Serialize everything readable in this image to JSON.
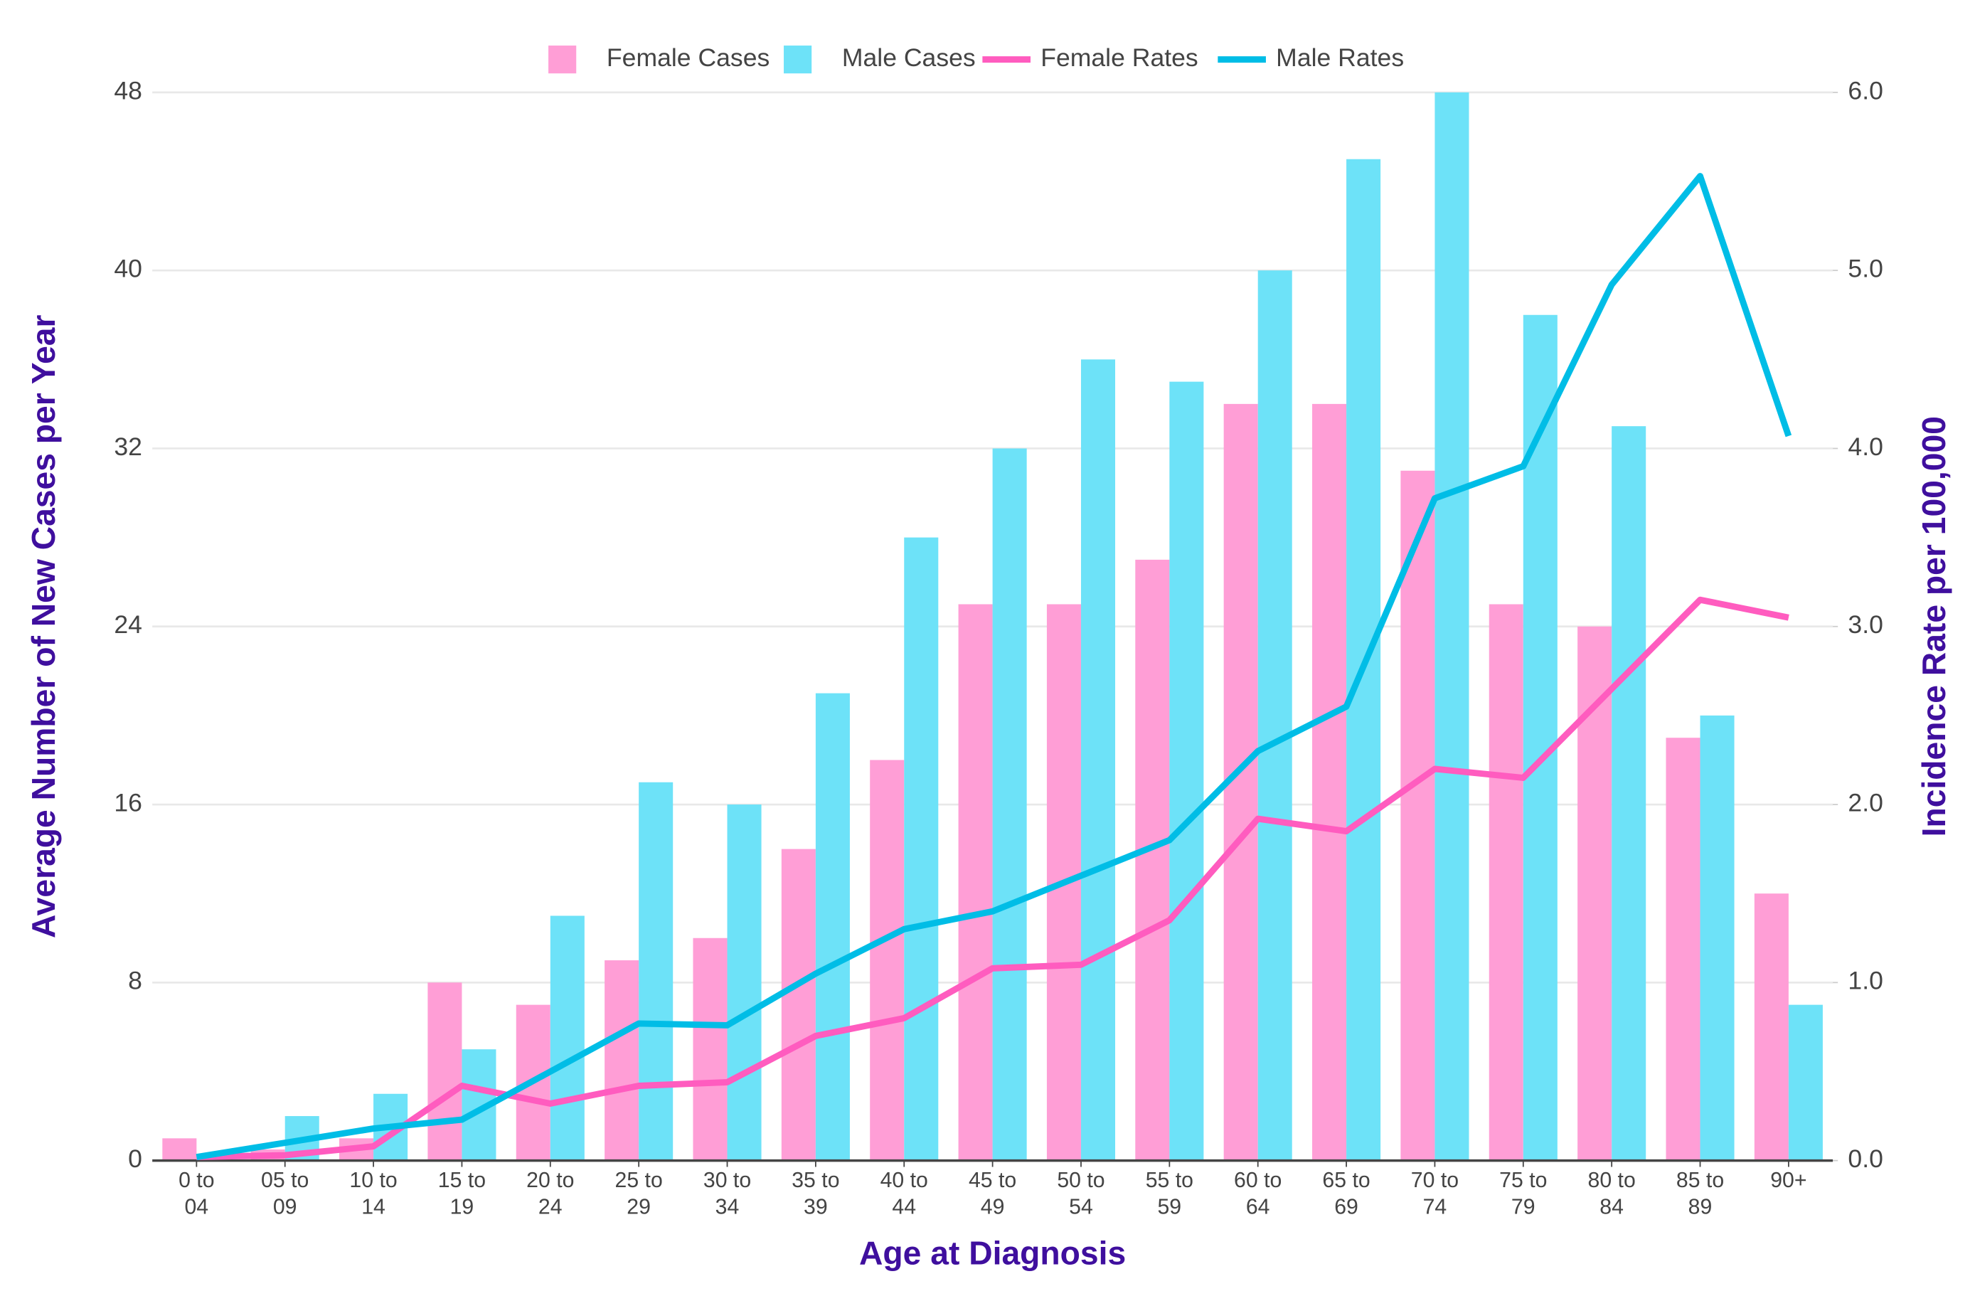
{
  "chart_data": {
    "type": "bar",
    "x_label": "Age at Diagnosis",
    "y_label": "Average Number of New Cases per Year",
    "y2_label": "Incidence Rate per 100,000",
    "categories": [
      "0 to 04",
      "05 to 09",
      "10 to 14",
      "15 to 19",
      "20 to 24",
      "25 to 29",
      "30 to 34",
      "35 to 39",
      "40 to 44",
      "45 to 49",
      "50 to 54",
      "55 to 59",
      "60 to 64",
      "65 to 69",
      "70 to 74",
      "75 to 79",
      "80 to 84",
      "85 to 89",
      "90+"
    ],
    "series": [
      {
        "name": "Female Cases",
        "type": "bar",
        "color": "#ff9ed6",
        "values": [
          1,
          0.5,
          1,
          8,
          7,
          9,
          10,
          14,
          18,
          25,
          25,
          27,
          34,
          34,
          31,
          25,
          24,
          19,
          12
        ]
      },
      {
        "name": "Male Cases",
        "type": "bar",
        "color": "#6de2f8",
        "values": [
          0,
          2,
          3,
          5,
          11,
          17,
          16,
          21,
          28,
          32,
          36,
          35,
          40,
          45,
          48,
          38,
          33,
          20,
          7
        ]
      },
      {
        "name": "Female Rates",
        "type": "line",
        "axis": "y2",
        "color": "#ff5cbf",
        "values": [
          0.02,
          0.03,
          0.08,
          0.42,
          0.32,
          0.42,
          0.44,
          0.7,
          0.8,
          1.08,
          1.1,
          1.35,
          1.92,
          1.85,
          2.2,
          2.15,
          2.65,
          3.15,
          3.05
        ]
      },
      {
        "name": "Male Rates",
        "type": "line",
        "axis": "y2",
        "color": "#00bde6",
        "values": [
          0.02,
          0.1,
          0.18,
          0.23,
          0.5,
          0.77,
          0.76,
          1.05,
          1.3,
          1.4,
          1.6,
          1.8,
          2.3,
          2.55,
          3.72,
          3.9,
          4.92,
          5.53,
          4.07
        ]
      }
    ],
    "ylim": [
      0,
      48
    ],
    "yticks": [
      0,
      8,
      16,
      24,
      32,
      40,
      48
    ],
    "y2lim": [
      0,
      6
    ],
    "y2ticks": [
      {
        "value": 0,
        "label": "0.0"
      },
      {
        "value": 1,
        "label": "1.0"
      },
      {
        "value": 2,
        "label": "2.0"
      },
      {
        "value": 3,
        "label": "3.0"
      },
      {
        "value": 4,
        "label": "4.0"
      },
      {
        "value": 5,
        "label": "5.0"
      },
      {
        "value": 6,
        "label": "6.0"
      }
    ],
    "grid": true,
    "legend": "top"
  }
}
